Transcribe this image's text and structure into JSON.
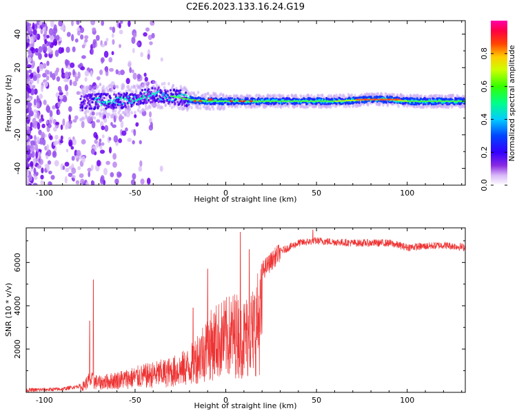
{
  "title": "C2E6.2023.133.16.24.G19",
  "chart_data": [
    {
      "type": "heatmap",
      "xlabel": "Height of straight line (km)",
      "ylabel": "Frequency (Hz)",
      "xlim": [
        -110,
        132
      ],
      "ylim": [
        -50,
        48
      ],
      "xticks": [
        -100,
        -50,
        0,
        50,
        100
      ],
      "yticks": [
        -40,
        -20,
        0,
        20,
        40
      ],
      "ridge": {
        "x": [
          -80,
          -70,
          -60,
          -50,
          -40,
          -30,
          -20,
          -10,
          0,
          10,
          20,
          40,
          60,
          80,
          90,
          100,
          132
        ],
        "y": [
          -1,
          0,
          0,
          1,
          4,
          3,
          1,
          0,
          0,
          0,
          0,
          0,
          0,
          1,
          1,
          0,
          0
        ]
      },
      "colorbar": {
        "label": "Normalized spectral amplitude",
        "ticks": [
          0.0,
          0.2,
          0.4,
          0.6,
          0.8
        ],
        "tick_labels": [
          "0.0",
          "0.2",
          "0.4",
          "0.6",
          "0.8"
        ],
        "range": [
          0,
          1
        ]
      }
    },
    {
      "type": "line",
      "xlabel": "Height of straight line (km)",
      "ylabel": "SNR (10 * v/v)",
      "xlim": [
        -110,
        132
      ],
      "ylim": [
        0,
        7600
      ],
      "xticks": [
        -100,
        -50,
        0,
        50,
        100
      ],
      "yticks": [
        2000,
        4000,
        6000
      ],
      "color": "#ee3333",
      "envelope": {
        "x": [
          -110,
          -90,
          -80,
          -75,
          -70,
          -60,
          -50,
          -40,
          -30,
          -20,
          -15,
          -10,
          -5,
          0,
          5,
          10,
          15,
          20,
          30,
          40,
          50,
          60,
          70,
          80,
          90,
          100,
          110,
          120,
          132
        ],
        "y": [
          100,
          150,
          300,
          900,
          700,
          900,
          1100,
          1300,
          1500,
          1900,
          2700,
          3300,
          3800,
          4000,
          4300,
          4000,
          4600,
          5600,
          6500,
          6900,
          7000,
          6950,
          6900,
          6900,
          6900,
          6700,
          6750,
          6800,
          6700
        ]
      },
      "spikes": [
        {
          "x": -73,
          "y": 5200
        },
        {
          "x": -75,
          "y": 3300
        },
        {
          "x": -18,
          "y": 3900
        },
        {
          "x": -10,
          "y": 5700
        },
        {
          "x": 8,
          "y": 7400
        },
        {
          "x": 7,
          "y": 1600
        },
        {
          "x": 13,
          "y": 6600
        },
        {
          "x": 15,
          "y": 1600
        },
        {
          "x": 48,
          "y": 7500
        }
      ]
    }
  ]
}
